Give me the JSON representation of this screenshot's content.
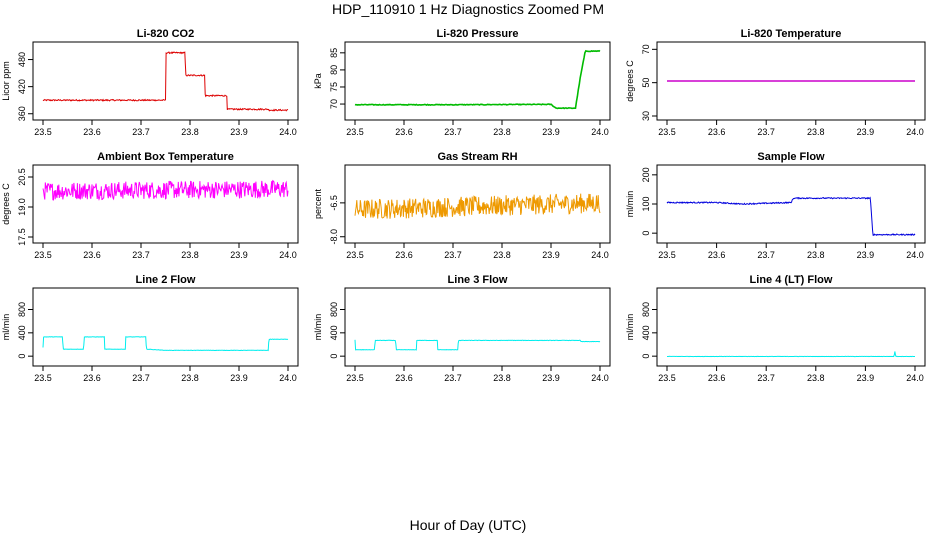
{
  "figure": {
    "title": "HDP_110910  1 Hz Diagnostics Zoomed PM",
    "xlabel": "Hour of Day (UTC)"
  },
  "chart_data": [
    {
      "type": "line",
      "title": "Li-820 CO2",
      "ylabel": "Licor ppm",
      "color": "#dd0000",
      "xlim": [
        23.5,
        24.0
      ],
      "x_ticks": [
        "23.5",
        "23.6",
        "23.7",
        "23.8",
        "23.9",
        "24.0"
      ],
      "ylim": [
        355,
        510
      ],
      "y_ticks": [
        "360",
        "420",
        "480"
      ],
      "noise": 1.5,
      "series": [
        {
          "x": [
            23.5,
            23.75,
            23.751,
            23.79,
            23.791,
            23.83,
            23.831,
            23.875,
            23.876,
            23.96,
            23.961,
            24.0
          ],
          "y": [
            390,
            390,
            495,
            495,
            445,
            445,
            400,
            400,
            370,
            370,
            368,
            368
          ]
        }
      ]
    },
    {
      "type": "line",
      "title": "Li-820 Pressure",
      "ylabel": "kPa",
      "color": "#00bb00",
      "xlim": [
        23.5,
        24.0
      ],
      "x_ticks": [
        "23.5",
        "23.6",
        "23.7",
        "23.8",
        "23.9",
        "24.0"
      ],
      "ylim": [
        66.5,
        87
      ],
      "y_ticks": [
        "70",
        "75",
        "80",
        "85"
      ],
      "noise": 0.1,
      "series": [
        {
          "x": [
            23.5,
            23.7,
            23.9,
            23.91,
            23.95,
            23.96,
            23.97,
            24.0
          ],
          "y": [
            69.8,
            69.8,
            69.9,
            68.8,
            68.8,
            78,
            85.5,
            85.5
          ]
        }
      ]
    },
    {
      "type": "line",
      "title": "Li-820 Temperature",
      "ylabel": "degrees C",
      "color": "#cc00cc",
      "xlim": [
        23.5,
        24.0
      ],
      "x_ticks": [
        "23.5",
        "23.6",
        "23.7",
        "23.8",
        "23.9",
        "24.0"
      ],
      "ylim": [
        30,
        72
      ],
      "y_ticks": [
        "30",
        "50",
        "70"
      ],
      "noise": 0,
      "series": [
        {
          "x": [
            23.5,
            24.0
          ],
          "y": [
            51,
            51
          ]
        }
      ]
    },
    {
      "type": "line",
      "title": "Ambient Box Temperature",
      "ylabel": "degrees C",
      "color": "#ff00ff",
      "xlim": [
        23.5,
        24.0
      ],
      "x_ticks": [
        "23.5",
        "23.6",
        "23.7",
        "23.8",
        "23.9",
        "24.0"
      ],
      "ylim": [
        17.4,
        20.9
      ],
      "y_ticks": [
        "17.5",
        "19.0",
        "20.5"
      ],
      "noise": 0.45,
      "series": [
        {
          "x": [
            23.5,
            24.0
          ],
          "y": [
            19.8,
            19.9
          ]
        }
      ]
    },
    {
      "type": "line",
      "title": "Gas Stream RH",
      "ylabel": "percent",
      "color": "#ee9900",
      "xlim": [
        23.5,
        24.0
      ],
      "x_ticks": [
        "23.5",
        "23.6",
        "23.7",
        "23.8",
        "23.9",
        "24.0"
      ],
      "ylim": [
        -8.1,
        -5.0
      ],
      "y_ticks": [
        "-8.0",
        "-6.5"
      ],
      "noise": 0.45,
      "series": [
        {
          "x": [
            23.5,
            24.0
          ],
          "y": [
            -6.8,
            -6.5
          ]
        }
      ]
    },
    {
      "type": "line",
      "title": "Sample Flow",
      "ylabel": "ml/min",
      "color": "#0000dd",
      "xlim": [
        23.5,
        24.0
      ],
      "x_ticks": [
        "23.5",
        "23.6",
        "23.7",
        "23.8",
        "23.9",
        "24.0"
      ],
      "ylim": [
        -20,
        220
      ],
      "y_ticks": [
        "0",
        "100",
        "200"
      ],
      "noise": 2,
      "series": [
        {
          "x": [
            23.5,
            23.6,
            23.65,
            23.75,
            23.755,
            23.91,
            23.915,
            24.0
          ],
          "y": [
            105,
            105,
            100,
            105,
            120,
            120,
            -5,
            -5
          ]
        }
      ]
    },
    {
      "type": "line",
      "title": "Line 2 Flow",
      "ylabel": "ml/min",
      "color": "#00eeee",
      "xlim": [
        23.5,
        24.0
      ],
      "x_ticks": [
        "23.5",
        "23.6",
        "23.7",
        "23.8",
        "23.9",
        "24.0"
      ],
      "ylim": [
        -100,
        1100
      ],
      "y_ticks": [
        "0",
        "400",
        "800"
      ],
      "noise": 3,
      "series": [
        {
          "x": [
            23.5,
            23.501,
            23.54,
            23.541,
            23.583,
            23.584,
            23.625,
            23.626,
            23.668,
            23.669,
            23.71,
            23.711,
            23.75,
            23.96,
            23.961,
            24.0
          ],
          "y": [
            150,
            330,
            330,
            120,
            120,
            330,
            330,
            120,
            120,
            330,
            330,
            120,
            100,
            100,
            290,
            290
          ]
        }
      ]
    },
    {
      "type": "line",
      "title": "Line 3 Flow",
      "ylabel": "ml/min",
      "color": "#00eeee",
      "xlim": [
        23.5,
        24.0
      ],
      "x_ticks": [
        "23.5",
        "23.6",
        "23.7",
        "23.8",
        "23.9",
        "24.0"
      ],
      "ylim": [
        -100,
        1100
      ],
      "y_ticks": [
        "0",
        "400",
        "800"
      ],
      "noise": 3,
      "series": [
        {
          "x": [
            23.5,
            23.501,
            23.54,
            23.541,
            23.583,
            23.584,
            23.625,
            23.626,
            23.668,
            23.669,
            23.71,
            23.711,
            23.96,
            23.961,
            24.0
          ],
          "y": [
            280,
            110,
            110,
            270,
            270,
            110,
            110,
            270,
            270,
            110,
            110,
            270,
            270,
            250,
            250
          ]
        }
      ]
    },
    {
      "type": "line",
      "title": "Line 4 (LT) Flow",
      "ylabel": "ml/min",
      "color": "#00eeee",
      "xlim": [
        23.5,
        24.0
      ],
      "x_ticks": [
        "23.5",
        "23.6",
        "23.7",
        "23.8",
        "23.9",
        "24.0"
      ],
      "ylim": [
        -100,
        1100
      ],
      "y_ticks": [
        "0",
        "400",
        "800"
      ],
      "noise": 2,
      "series": [
        {
          "x": [
            23.5,
            23.958,
            23.959,
            23.96,
            23.961,
            24.0
          ],
          "y": [
            -5,
            -5,
            80,
            80,
            -5,
            -5
          ]
        }
      ]
    }
  ]
}
